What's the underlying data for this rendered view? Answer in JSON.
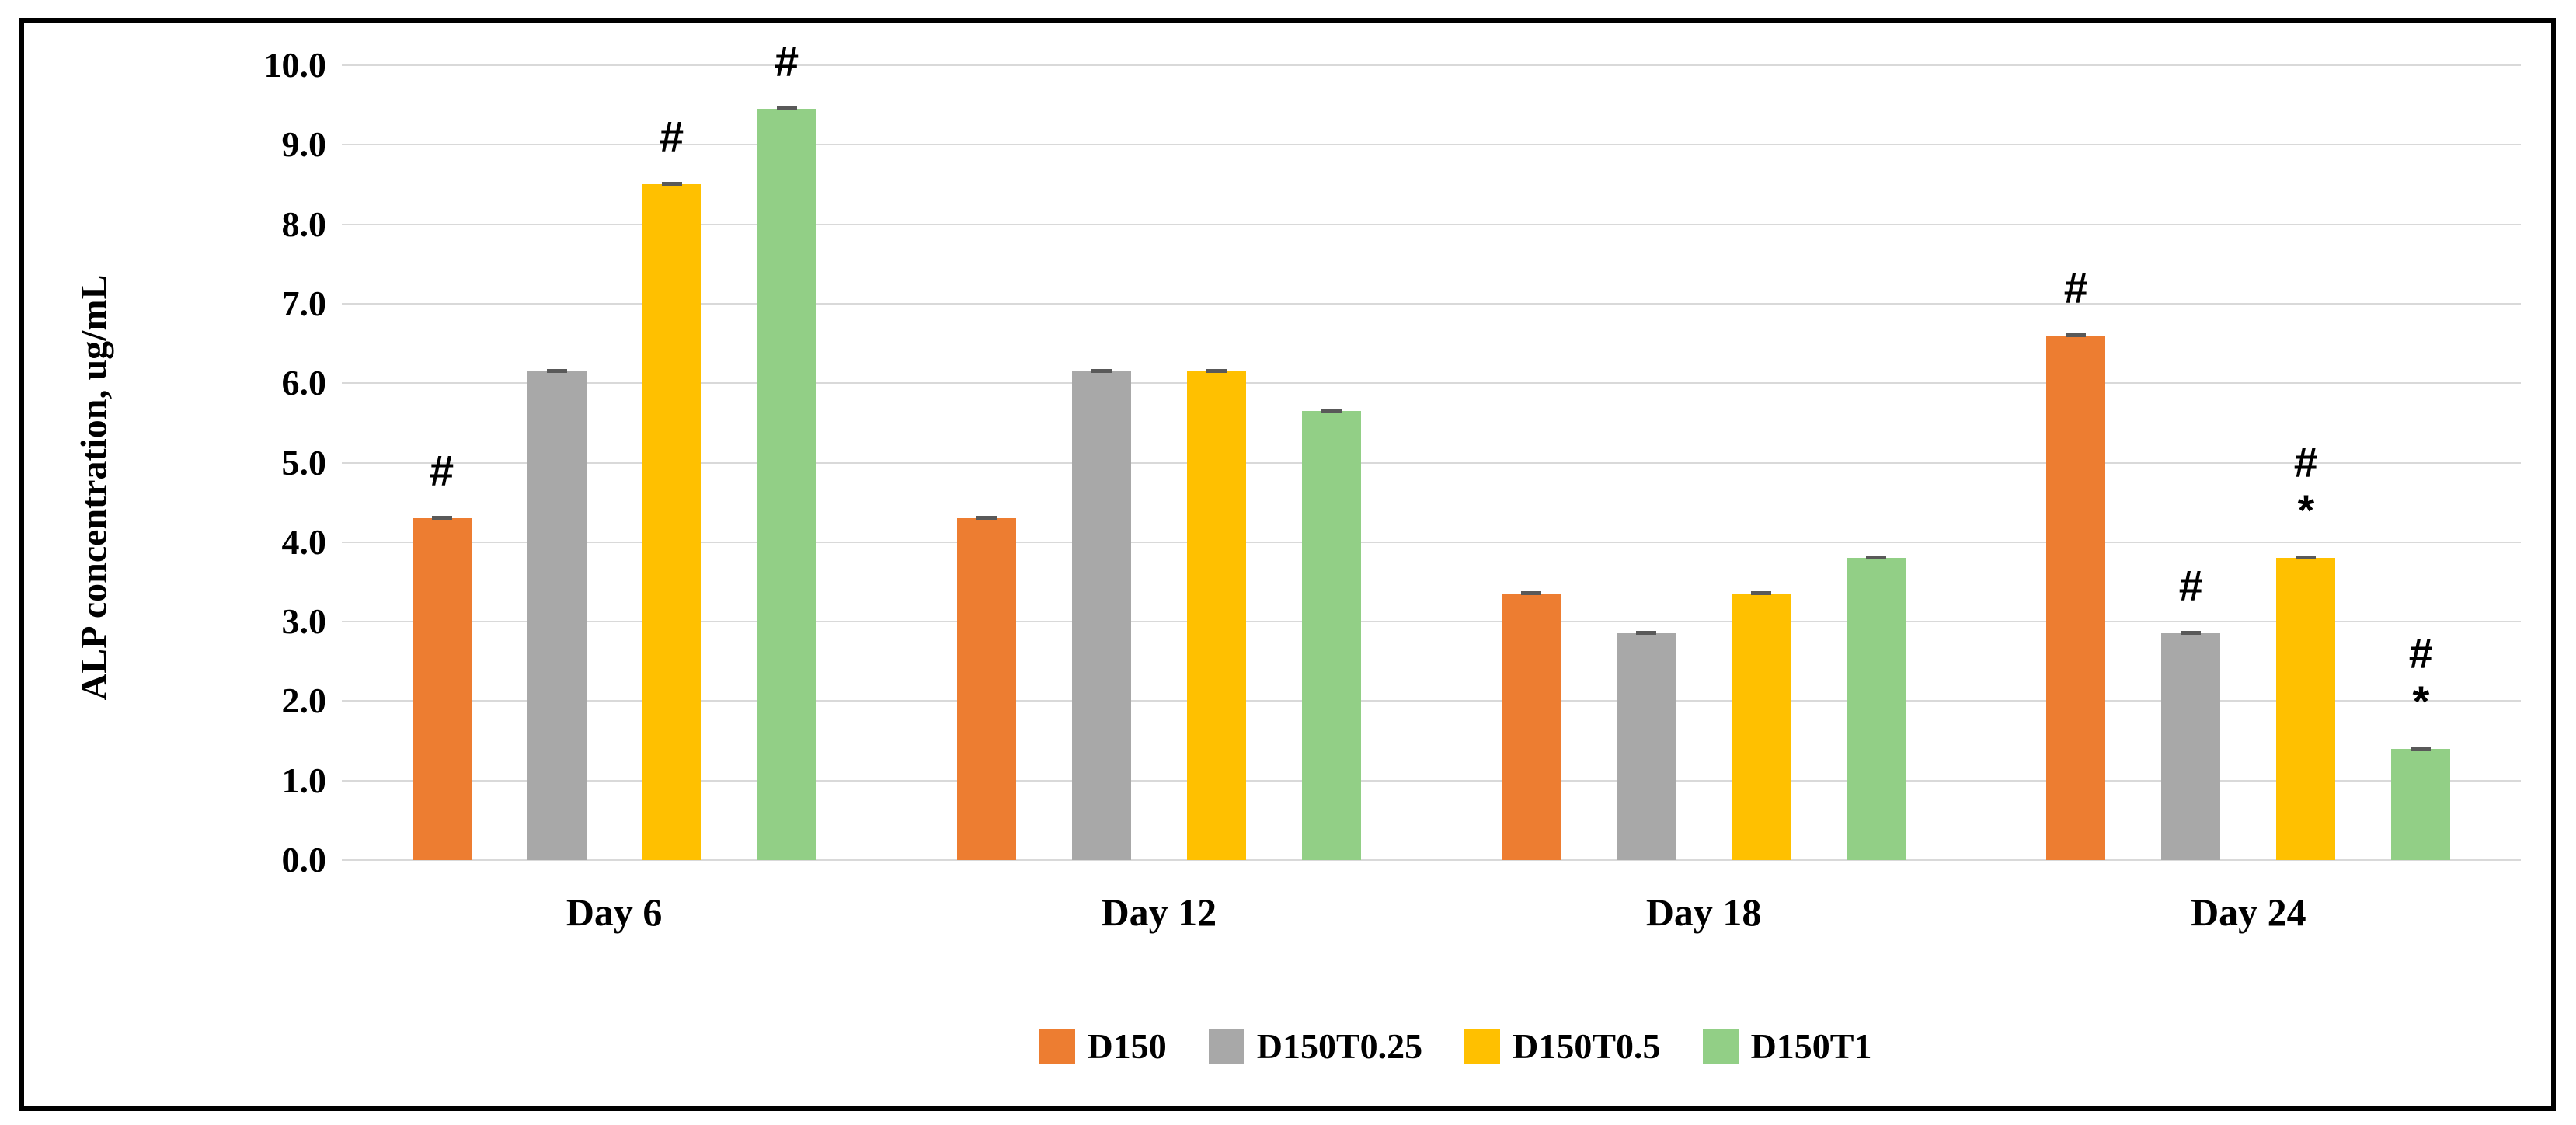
{
  "chart_data": {
    "type": "bar",
    "title": "",
    "ylabel": "ALP concentration, ug/mL",
    "xlabel": "",
    "ylim": [
      0,
      10
    ],
    "y_tick_labels": [
      "0.0",
      "1.0",
      "2.0",
      "3.0",
      "4.0",
      "5.0",
      "6.0",
      "7.0",
      "8.0",
      "9.0",
      "10.0"
    ],
    "grid": true,
    "legend_position": "bottom",
    "categories": [
      "Day 6",
      "Day 12",
      "Day 18",
      "Day 24"
    ],
    "series": [
      {
        "name": "D150",
        "color": "#ED7D31",
        "values": [
          4.3,
          4.3,
          3.35,
          6.6
        ]
      },
      {
        "name": "D150T0.25",
        "color": "#A8A8A8",
        "values": [
          6.15,
          6.15,
          2.85,
          2.85
        ]
      },
      {
        "name": "D150T0.5",
        "color": "#FFC000",
        "values": [
          8.5,
          6.15,
          3.35,
          3.8
        ]
      },
      {
        "name": "D150T1",
        "color": "#92CF86",
        "values": [
          9.45,
          5.65,
          3.8,
          1.4
        ]
      }
    ],
    "error_bar": 0.05,
    "annotations": [
      [
        [
          "#"
        ],
        [],
        [
          "#"
        ],
        [
          "#"
        ]
      ],
      [
        [],
        [],
        [],
        []
      ],
      [
        [],
        [],
        [],
        []
      ],
      [
        [
          "#"
        ],
        [
          "#"
        ],
        [
          "#",
          "*"
        ],
        [
          "#",
          "*"
        ]
      ]
    ]
  },
  "colors": {
    "gridline": "#D9D9D9",
    "error_cap": "#595959",
    "text": "#000000",
    "frame_border": "#000000",
    "background": "#FFFFFF"
  }
}
